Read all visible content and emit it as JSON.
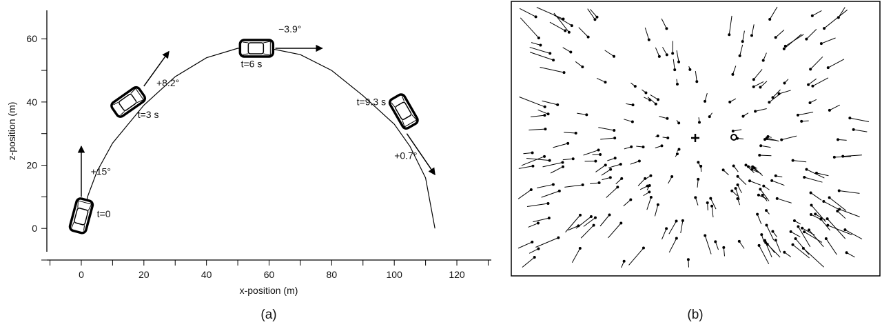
{
  "chart_data": {
    "type": "line",
    "x_label": "x-position (m)",
    "y_label": "z-position (m)",
    "x": [
      0,
      2,
      5,
      10,
      20,
      30,
      40,
      50,
      60,
      70,
      80,
      90,
      100,
      105,
      110,
      113
    ],
    "series": [
      {
        "color": "#000000",
        "values": [
          0,
          10,
          18,
          27,
          39,
          48,
          54,
          57,
          57,
          55,
          50,
          42,
          33,
          26,
          16,
          0
        ]
      }
    ],
    "xlim": [
      -11,
      131
    ],
    "ylim": [
      -10,
      69
    ],
    "xticks": [
      0,
      20,
      40,
      60,
      80,
      100,
      120
    ],
    "yticks": [
      0,
      20,
      40,
      60
    ],
    "minor_xticks": [
      -10,
      10,
      30,
      50,
      70,
      90,
      110,
      130
    ],
    "minor_yticks": [
      -10,
      10,
      30,
      50
    ],
    "annotations": [
      "+15°",
      "t=0",
      "+8.2°",
      "t=3 s",
      "−3.9°",
      "t=6 s",
      "t=9.3 s",
      "+0.7°"
    ],
    "caption": "(a)"
  },
  "panel_b": {
    "caption": "(b)"
  }
}
